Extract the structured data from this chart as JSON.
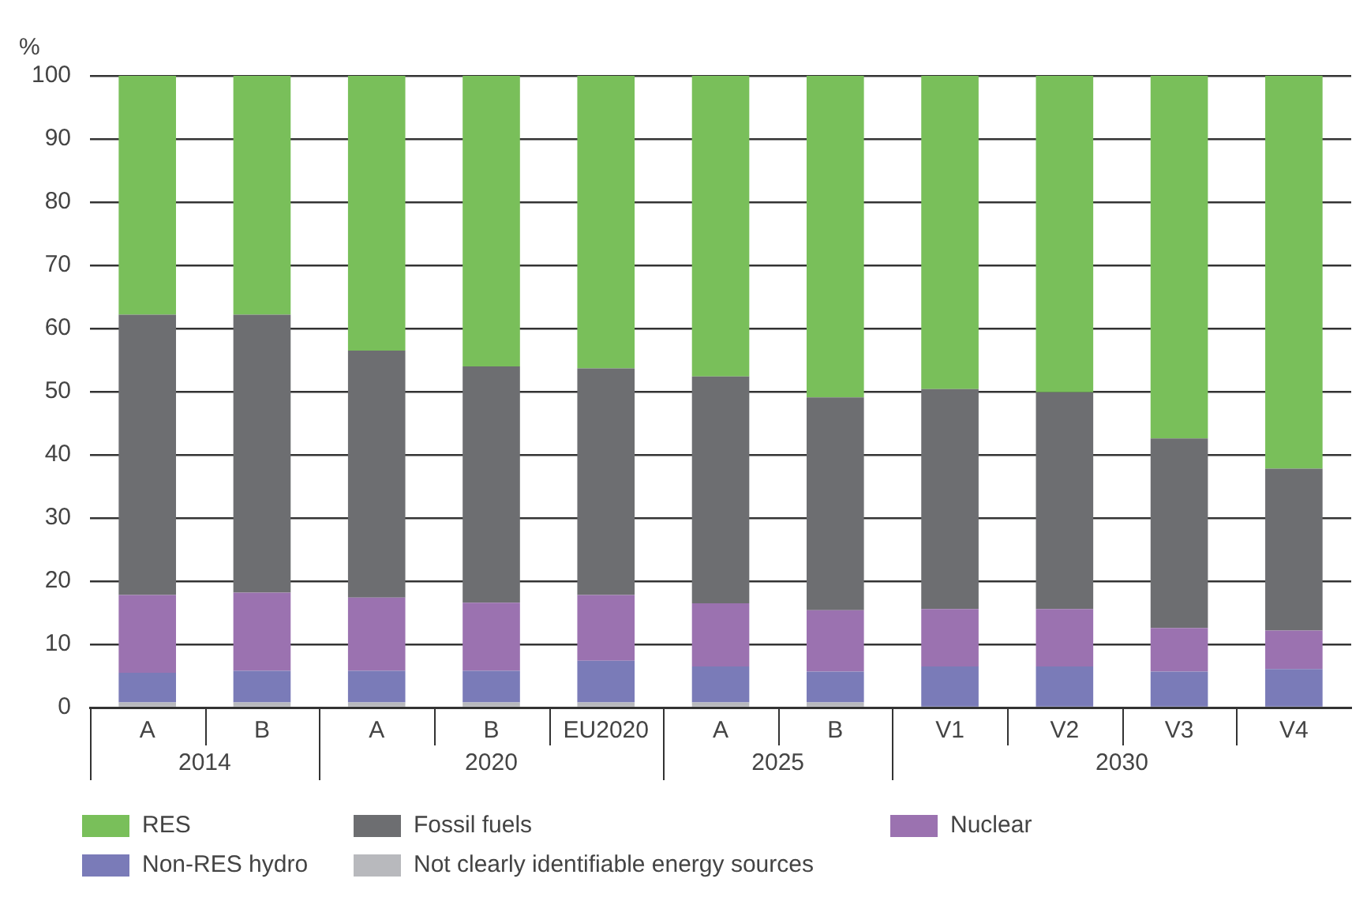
{
  "chart_data": {
    "type": "bar",
    "stacked": true,
    "ylabel": "%",
    "categories": [
      "A",
      "B",
      "A",
      "B",
      "EU2020",
      "A",
      "B",
      "V1",
      "V2",
      "V3",
      "V4"
    ],
    "annotations": [
      "2014",
      "2020",
      "2025",
      "2030"
    ],
    "series": [
      {
        "name": "Not clearly identifiable energy sources",
        "color": "#b8b9bd",
        "values": [
          0.8,
          0.8,
          0.8,
          0.8,
          0.8,
          0.8,
          0.8,
          null,
          null,
          null,
          null
        ]
      },
      {
        "name": "Non-RES hydro",
        "color": "#7a7bb8",
        "values": [
          4.7,
          5.0,
          5.0,
          5.0,
          6.6,
          5.7,
          4.9,
          6.5,
          6.5,
          5.7,
          6.1
        ]
      },
      {
        "name": "Nuclear",
        "color": "#9b72b0",
        "values": [
          12.3,
          12.4,
          11.6,
          10.8,
          10.4,
          10.0,
          9.7,
          9.1,
          9.1,
          6.9,
          6.1
        ]
      },
      {
        "name": "Fossil fuels",
        "color": "#6d6e71",
        "values": [
          44.4,
          44.0,
          39.1,
          37.4,
          35.9,
          35.9,
          33.7,
          34.8,
          34.3,
          30.0,
          25.6
        ]
      },
      {
        "name": "RES",
        "color": "#79bf5a",
        "values": [
          37.8,
          37.8,
          43.5,
          46.0,
          46.3,
          47.6,
          50.9,
          49.6,
          50.1,
          57.4,
          62.2
        ]
      }
    ],
    "ylim": [
      0,
      100
    ],
    "yticks": [
      0,
      10,
      20,
      30,
      40,
      50,
      60,
      70,
      80,
      90,
      100
    ],
    "grid": "y",
    "legend": "bottom"
  }
}
